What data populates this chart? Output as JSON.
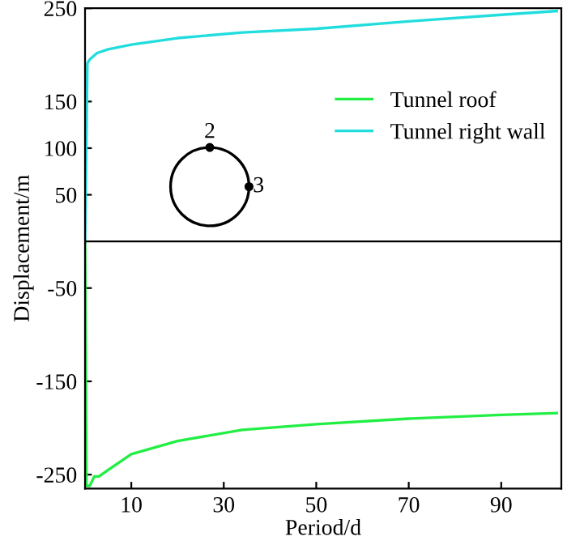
{
  "chart_data": {
    "type": "line",
    "xlabel": "Period/d",
    "ylabel": "Displacement/m",
    "xlim": [
      0,
      103
    ],
    "xticks": [
      10,
      30,
      50,
      70,
      90
    ],
    "ylim": [
      -265,
      250
    ],
    "yticks": [
      250,
      150,
      100,
      50,
      -50,
      -150,
      -250
    ],
    "series": [
      {
        "name": "Tunnel roof",
        "color": "#22ee44",
        "x": [
          0,
          0.3,
          1,
          2,
          3,
          5,
          10,
          20,
          34,
          50,
          70,
          90,
          102
        ],
        "values": [
          0,
          -262,
          -262,
          -252,
          -252,
          -245,
          -228,
          -214,
          -202,
          -196,
          -190,
          -186,
          -184
        ]
      },
      {
        "name": "Tunnel right wall",
        "color": "#22dddd",
        "x": [
          0,
          0.5,
          1,
          2.6,
          5,
          10,
          20,
          34,
          50,
          70,
          90,
          102
        ],
        "values": [
          0,
          191,
          195,
          202,
          206,
          211,
          218,
          224,
          228,
          236,
          243,
          247
        ]
      }
    ],
    "ref_lines": [
      {
        "axis": "y",
        "value": 0,
        "color": "#000000"
      }
    ],
    "annotations": [
      "2",
      "3"
    ],
    "legend": "top right",
    "grid": false
  }
}
